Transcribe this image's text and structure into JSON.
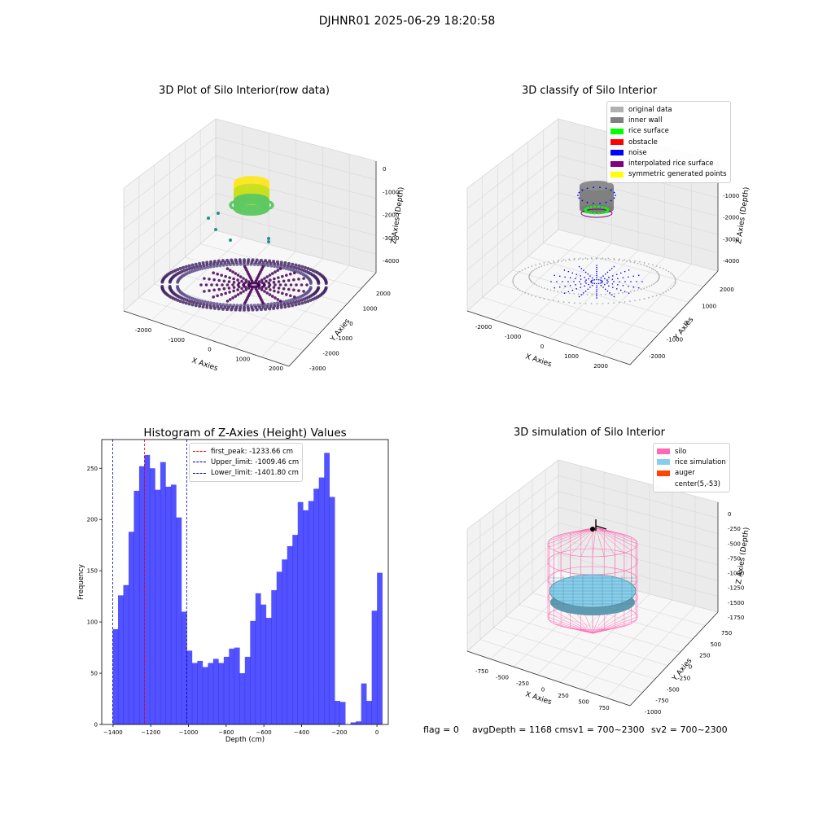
{
  "suptitle": "DJHNR01 2025-06-29 18:20:58",
  "footer": {
    "flag": "flag = 0",
    "avg_depth": "avgDepth = 1168 cm",
    "sv1": "sv1 = 700~2300",
    "sv2": "sv2 = 700~2300"
  },
  "chart_data": [
    {
      "type": "scatter",
      "title": "3D Plot of Silo Interior(row data)",
      "xlabel": "X Axies",
      "ylabel": "Y Axies",
      "zlabel": "Z Axies (Depth)",
      "x_ticks": [
        "-2000",
        "-1000",
        "0",
        "1000",
        "2000"
      ],
      "y_ticks": [
        "-3000",
        "-2000",
        "-1000",
        "0",
        "1000",
        "2000"
      ],
      "z_ticks": [
        "0",
        "-1000",
        "-2000",
        "-3000",
        "-4000"
      ],
      "colormap": [
        "#440154",
        "#3b528b",
        "#21918c",
        "#5ec962",
        "#fde725"
      ]
    },
    {
      "type": "scatter",
      "title": "3D classify of Silo Interior",
      "xlabel": "X Axies",
      "ylabel": "Y Axies",
      "zlabel": "Z Axies (Depth)",
      "x_ticks": [
        "-2000",
        "-1000",
        "0",
        "1000",
        "2000"
      ],
      "y_ticks": [
        "-2000",
        "-1000",
        "0",
        "1000",
        "2000"
      ],
      "z_ticks": [
        "-1000",
        "-2000",
        "-3000",
        "-4000"
      ],
      "legend": [
        {
          "label": "original data",
          "color": "#b0b0b0"
        },
        {
          "label": "inner wall",
          "color": "#808080"
        },
        {
          "label": "rice surface",
          "color": "#00ff00"
        },
        {
          "label": "obstacle",
          "color": "#ff0000"
        },
        {
          "label": "noise",
          "color": "#0000ff"
        },
        {
          "label": "interpolated rice surface",
          "color": "#800080"
        },
        {
          "label": "symmetric generated points",
          "color": "#ffff00"
        }
      ]
    },
    {
      "type": "bar",
      "title": "Histogram of Z-Axies (Height) Values",
      "xlabel": "Depth (cm)",
      "ylabel": "Frequency",
      "xlim": [
        -1460,
        60
      ],
      "ylim": [
        0,
        278
      ],
      "x_ticks": [
        -1400,
        -1200,
        -1000,
        -800,
        -600,
        -400,
        -200,
        0
      ],
      "y_ticks": [
        0,
        50,
        100,
        150,
        200,
        250
      ],
      "bar_color": "#0000ff",
      "bin_start": -1401.8,
      "bin_width": 28.04,
      "values": [
        93,
        126,
        136,
        188,
        228,
        252,
        263,
        250,
        229,
        256,
        232,
        234,
        202,
        110,
        72,
        60,
        62,
        56,
        60,
        64,
        60,
        66,
        74,
        75,
        50,
        66,
        101,
        128,
        117,
        104,
        131,
        149,
        161,
        174,
        185,
        217,
        209,
        218,
        230,
        241,
        265,
        222,
        23,
        22,
        0,
        2,
        3,
        40,
        23,
        111,
        148
      ],
      "lines": [
        {
          "label": "first_peak: -1233.66 cm",
          "value": -1233.66,
          "color": "#ff0000"
        },
        {
          "label": "Upper_limit: -1009.46 cm",
          "value": -1009.46,
          "color": "#0000aa"
        },
        {
          "label": "Lower_limit: -1401.80 cm",
          "value": -1401.8,
          "color": "#0000aa"
        }
      ]
    },
    {
      "type": "scatter",
      "title": "3D simulation of Silo Interior",
      "xlabel": "X Axies",
      "ylabel": "Y Axies",
      "zlabel": "Z Axies (Depth)",
      "x_ticks": [
        "-750",
        "-500",
        "-250",
        "0",
        "250",
        "500",
        "750"
      ],
      "y_ticks": [
        "-1000",
        "-750",
        "-500",
        "-250",
        "0",
        "250",
        "500",
        "750"
      ],
      "z_ticks": [
        "0",
        "-250",
        "-500",
        "-750",
        "-1000",
        "-1250",
        "-1500",
        "-1750"
      ],
      "legend": [
        {
          "label": "silo",
          "color": "#ff69b4"
        },
        {
          "label": "rice simulation",
          "color": "#87ceeb"
        },
        {
          "label": "auger",
          "color": "#ff4500"
        },
        {
          "label": "center(5,-53)",
          "color": ""
        }
      ]
    }
  ]
}
